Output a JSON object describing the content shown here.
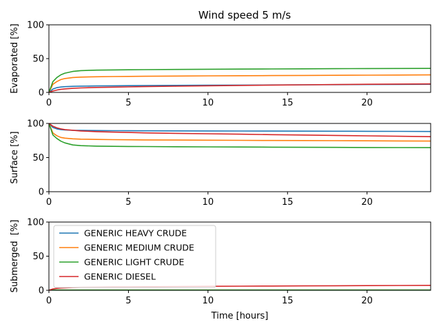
{
  "chart_data": {
    "type": "line",
    "title": "Wind speed 5 m/s",
    "xlabel": "Time [hours]",
    "xlim": [
      0,
      24
    ],
    "xticks": [
      0,
      5,
      10,
      15,
      20
    ],
    "legend": {
      "placement": "upper-left",
      "panel": 2
    },
    "colors": {
      "GENERIC HEAVY CRUDE": "#1f77b4",
      "GENERIC MEDIUM CRUDE": "#ff7f0e",
      "GENERIC LIGHT CRUDE": "#2ca02c",
      "GENERIC DIESEL": "#d62728"
    },
    "x": [
      0,
      0.25,
      0.5,
      0.75,
      1,
      1.5,
      2,
      3,
      4,
      5,
      6,
      8,
      10,
      12,
      14,
      16,
      18,
      20,
      22,
      24
    ],
    "panels": [
      {
        "ylabel": "Evaporated [%]",
        "ylim": [
          0,
          100
        ],
        "yticks": [
          0,
          50,
          100
        ],
        "series": [
          {
            "name": "GENERIC HEAVY CRUDE",
            "values": [
              0,
              5,
              7,
              8,
              8.5,
              9,
              9.3,
              9.6,
              9.8,
              10,
              10.1,
              10.4,
              10.6,
              10.8,
              11,
              11.2,
              11.4,
              11.6,
              11.8,
              12
            ]
          },
          {
            "name": "GENERIC MEDIUM CRUDE",
            "values": [
              0,
              12,
              16,
              19,
              20.5,
              22,
              22.7,
              23.2,
              23.5,
              23.7,
              23.9,
              24.2,
              24.5,
              24.7,
              24.9,
              25.1,
              25.3,
              25.5,
              25.7,
              25.9
            ]
          },
          {
            "name": "GENERIC LIGHT CRUDE",
            "values": [
              0,
              16,
              22,
              26,
              28.5,
              31,
              32.2,
              33,
              33.3,
              33.5,
              33.7,
              34,
              34.3,
              34.5,
              34.7,
              34.9,
              35.1,
              35.3,
              35.4,
              35.5
            ]
          },
          {
            "name": "GENERIC DIESEL",
            "values": [
              0,
              2,
              3.5,
              4.5,
              5.2,
              6,
              6.6,
              7.3,
              7.8,
              8.2,
              8.6,
              9.2,
              9.8,
              10.3,
              10.8,
              11.2,
              11.6,
              12,
              12.3,
              12.6
            ]
          }
        ]
      },
      {
        "ylabel": "Surface [%]",
        "ylim": [
          0,
          100
        ],
        "yticks": [
          0,
          50,
          100
        ],
        "series": [
          {
            "name": "GENERIC HEAVY CRUDE",
            "values": [
              100,
              94,
              92,
              91,
              90.5,
              90,
              89.8,
              89.6,
              89.4,
              89.3,
              89.2,
              89.1,
              89,
              88.9,
              88.8,
              88.7,
              88.6,
              88.5,
              88.4,
              88.2
            ]
          },
          {
            "name": "GENERIC MEDIUM CRUDE",
            "values": [
              100,
              86,
              82,
              79.5,
              78.5,
              77.5,
              77,
              76.6,
              76.3,
              76.1,
              75.9,
              75.7,
              75.5,
              75.3,
              75.1,
              74.9,
              74.7,
              74.5,
              74.3,
              74.1
            ]
          },
          {
            "name": "GENERIC LIGHT CRUDE",
            "values": [
              100,
              83,
              78,
              74,
              71.5,
              68.5,
              67.5,
              66.8,
              66.5,
              66.3,
              66.2,
              65.9,
              65.7,
              65.5,
              65.3,
              65.1,
              64.9,
              64.7,
              64.6,
              64.5
            ]
          },
          {
            "name": "GENERIC DIESEL",
            "values": [
              100,
              96,
              93.5,
              92,
              91,
              90,
              89,
              88,
              87.3,
              86.8,
              86.2,
              85.5,
              84.8,
              84.2,
              83.5,
              83,
              82.4,
              81.8,
              81.2,
              80.6
            ]
          }
        ]
      },
      {
        "ylabel": "Submerged  [%]",
        "ylim": [
          0,
          100
        ],
        "yticks": [
          0,
          50,
          100
        ],
        "series": [
          {
            "name": "GENERIC HEAVY CRUDE",
            "values": [
              0,
              0.1,
              0.1,
              0.1,
              0.1,
              0.1,
              0.1,
              0.1,
              0.1,
              0.1,
              0.1,
              0.1,
              0.1,
              0.1,
              0.1,
              0.1,
              0.1,
              0.1,
              0.1,
              0.1
            ]
          },
          {
            "name": "GENERIC MEDIUM CRUDE",
            "values": [
              0,
              0.3,
              0.3,
              0.3,
              0.3,
              0.3,
              0.3,
              0.3,
              0.3,
              0.3,
              0.3,
              0.3,
              0.3,
              0.3,
              0.3,
              0.3,
              0.3,
              0.3,
              0.3,
              0.3
            ]
          },
          {
            "name": "GENERIC LIGHT CRUDE",
            "values": [
              0,
              0.5,
              0.5,
              0.5,
              0.5,
              0.5,
              0.5,
              0.5,
              0.5,
              0.5,
              0.5,
              0.5,
              0.5,
              0.5,
              0.5,
              0.5,
              0.5,
              0.5,
              0.5,
              0.5
            ]
          },
          {
            "name": "GENERIC DIESEL",
            "values": [
              0,
              2,
              2.8,
              3.3,
              3.6,
              4,
              4.3,
              4.6,
              4.9,
              5.1,
              5.3,
              5.6,
              5.9,
              6.1,
              6.3,
              6.5,
              6.7,
              6.9,
              7.1,
              7.3
            ]
          }
        ]
      }
    ]
  }
}
